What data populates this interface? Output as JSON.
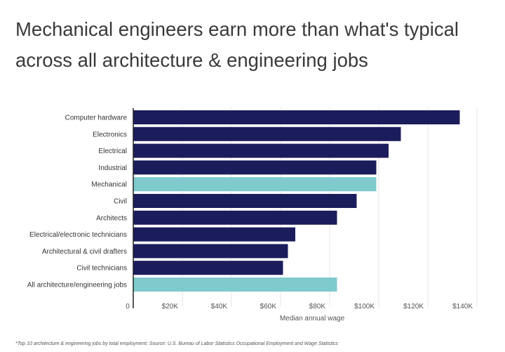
{
  "title": "Mechanical engineers earn more than what's typical across all architecture & engineering jobs",
  "footnote": "*Top 10 architecture & engineering jobs by total employment; Source: U.S. Bureau of Labor Statistics Occupational Employment and Wage Statistics",
  "colors": {
    "default": "#1b1c5c",
    "highlight": "#7ecacd",
    "grid": "#e4e4e4"
  },
  "chart_data": {
    "type": "bar",
    "orientation": "horizontal",
    "categories": [
      "Computer hardware",
      "Electronics",
      "Electrical",
      "Industrial",
      "Mechanical",
      "Civil",
      "Architects",
      "Electrical/electronic technicians",
      "Architectural & civil drafters",
      "Civil technicians",
      "All architecture/engineering jobs"
    ],
    "values": [
      133000,
      109000,
      104000,
      99000,
      99000,
      91000,
      83000,
      66000,
      63000,
      61000,
      83000
    ],
    "highlighted": [
      "Mechanical",
      "All architecture/engineering jobs"
    ],
    "xlabel": "Median annual wage",
    "ylabel": "",
    "xlim": [
      0,
      145000
    ],
    "xticks": [
      0,
      20000,
      40000,
      60000,
      80000,
      100000,
      120000,
      140000
    ],
    "xtick_labels": [
      "0",
      "$20K",
      "$40K",
      "$60K",
      "$80K",
      "$100K",
      "$120K",
      "$140K"
    ],
    "grid": true
  }
}
